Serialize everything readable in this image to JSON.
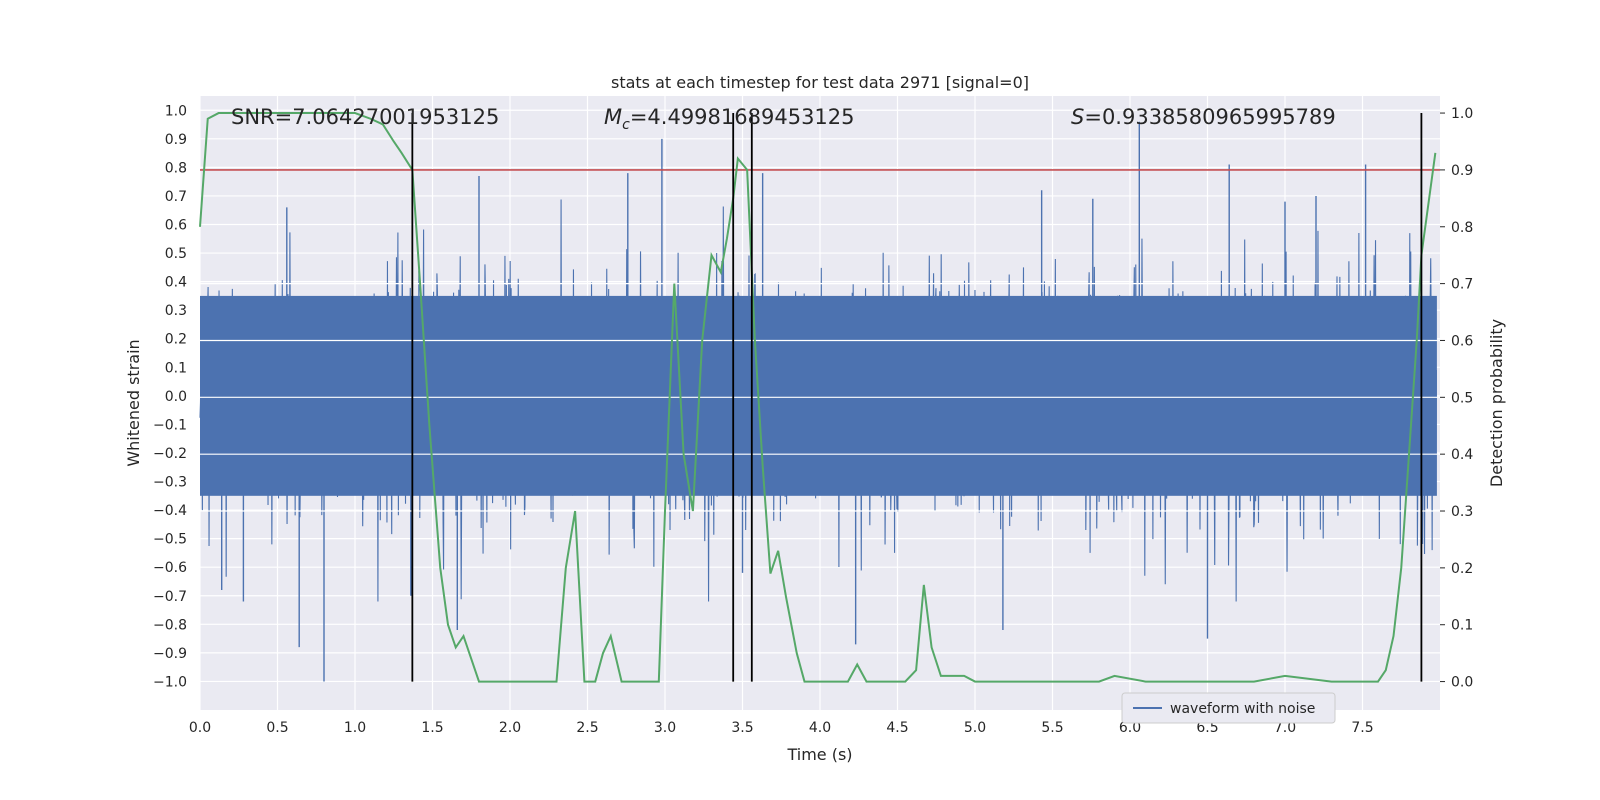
{
  "chart_data": {
    "type": "line",
    "title": "stats at each timestep for test data 2971 [signal=0]",
    "xlabel": "Time (s)",
    "ylabel": "Whitened strain",
    "ylabel_right": "Detection probability",
    "xlim": [
      0.0,
      8.0
    ],
    "ylim": [
      -1.1,
      1.05
    ],
    "ylim_right": [
      -0.05,
      1.03
    ],
    "x_ticks": [
      "0.0",
      "0.5",
      "1.0",
      "1.5",
      "2.0",
      "2.5",
      "3.0",
      "3.5",
      "4.0",
      "4.5",
      "5.0",
      "5.5",
      "6.0",
      "6.5",
      "7.0",
      "7.5"
    ],
    "y_ticks": [
      "1.0",
      "0.9",
      "0.8",
      "0.7",
      "0.6",
      "0.5",
      "0.4",
      "0.3",
      "0.2",
      "0.1",
      "0.0",
      "−0.1",
      "−0.2",
      "−0.3",
      "−0.4",
      "−0.5",
      "−0.6",
      "−0.7",
      "−0.8",
      "−0.9",
      "−1.0"
    ],
    "y_tick_values": [
      1.0,
      0.9,
      0.8,
      0.7,
      0.6,
      0.5,
      0.4,
      0.3,
      0.2,
      0.1,
      0.0,
      -0.1,
      -0.2,
      -0.3,
      -0.4,
      -0.5,
      -0.6,
      -0.7,
      -0.8,
      -0.9,
      -1.0
    ],
    "y_right_ticks": [
      "1.0",
      "0.9",
      "0.8",
      "0.7",
      "0.6",
      "0.5",
      "0.4",
      "0.3",
      "0.2",
      "0.1",
      "0.0"
    ],
    "y_right_tick_values": [
      1.0,
      0.9,
      0.8,
      0.7,
      0.6,
      0.5,
      0.4,
      0.3,
      0.2,
      0.1,
      0.0
    ],
    "annotations": {
      "snr": "SNR=7.06427001953125",
      "mc_symbol": "M",
      "mc_sub": "c",
      "mc_value": "=4.49981689453125",
      "s_symbol": "S",
      "s_value": "=0.9338580965995789"
    },
    "legend": {
      "label": "waveform with noise",
      "position": "lower-right"
    },
    "threshold": {
      "y_right": 0.9,
      "color": "#c44e52"
    },
    "vertical_lines": [
      1.37,
      3.44,
      3.56,
      7.88
    ],
    "series": [
      {
        "name": "waveform with noise",
        "axis": "left",
        "color": "#4c72b0",
        "style": "dense-noise",
        "core_amplitude": 0.35,
        "typical_peak": 0.6,
        "spikes_t": [
          0.14,
          0.28,
          0.56,
          0.64,
          0.8,
          1.36,
          1.66,
          1.8,
          2.76,
          2.98,
          3.5,
          3.63,
          4.23,
          5.18,
          5.43,
          5.76,
          6.06,
          6.5,
          6.64,
          7.0,
          7.2,
          7.52,
          7.88
        ],
        "spikes_v": [
          -0.68,
          -0.72,
          0.66,
          -0.88,
          -1.0,
          -0.7,
          -0.82,
          0.77,
          0.78,
          0.9,
          -0.62,
          0.78,
          -0.87,
          -0.82,
          0.72,
          0.69,
          0.96,
          -0.85,
          0.81,
          0.68,
          0.7,
          0.81,
          0.85
        ],
        "seed": 2971
      },
      {
        "name": "detection probability",
        "axis": "right",
        "color": "#55a868",
        "x": [
          0.0,
          0.05,
          0.12,
          0.2,
          0.4,
          0.6,
          0.8,
          1.0,
          1.1,
          1.18,
          1.25,
          1.3,
          1.37,
          1.42,
          1.48,
          1.55,
          1.6,
          1.65,
          1.7,
          1.75,
          1.8,
          1.85,
          1.9,
          2.0,
          2.2,
          2.3,
          2.36,
          2.42,
          2.48,
          2.55,
          2.6,
          2.65,
          2.72,
          2.78,
          2.84,
          2.9,
          2.96,
          3.0,
          3.06,
          3.12,
          3.18,
          3.24,
          3.3,
          3.36,
          3.4,
          3.44,
          3.47,
          3.53,
          3.58,
          3.63,
          3.68,
          3.73,
          3.78,
          3.85,
          3.9,
          4.0,
          4.1,
          4.18,
          4.24,
          4.3,
          4.36,
          4.45,
          4.55,
          4.62,
          4.67,
          4.72,
          4.78,
          4.85,
          4.93,
          5.0,
          5.1,
          5.4,
          5.8,
          5.9,
          6.1,
          6.6,
          6.8,
          7.0,
          7.3,
          7.55,
          7.6,
          7.65,
          7.7,
          7.75,
          7.8,
          7.85,
          7.88,
          7.93,
          7.97
        ],
        "y": [
          0.8,
          0.99,
          1.0,
          1.0,
          1.0,
          1.0,
          1.0,
          1.0,
          0.99,
          0.98,
          0.95,
          0.93,
          0.9,
          0.7,
          0.45,
          0.2,
          0.1,
          0.06,
          0.08,
          0.04,
          0.0,
          0.0,
          0.0,
          0.0,
          0.0,
          0.0,
          0.2,
          0.3,
          0.0,
          0.0,
          0.05,
          0.08,
          0.0,
          0.0,
          0.0,
          0.0,
          0.0,
          0.3,
          0.7,
          0.4,
          0.3,
          0.6,
          0.75,
          0.72,
          0.78,
          0.85,
          0.92,
          0.9,
          0.6,
          0.38,
          0.19,
          0.23,
          0.15,
          0.05,
          0.0,
          0.0,
          0.0,
          0.0,
          0.03,
          0.0,
          0.0,
          0.0,
          0.0,
          0.02,
          0.17,
          0.06,
          0.01,
          0.01,
          0.01,
          0.0,
          0.0,
          0.0,
          0.0,
          0.01,
          0.0,
          0.0,
          0.0,
          0.01,
          0.0,
          0.0,
          0.0,
          0.02,
          0.08,
          0.2,
          0.4,
          0.6,
          0.75,
          0.85,
          0.93
        ]
      }
    ]
  }
}
